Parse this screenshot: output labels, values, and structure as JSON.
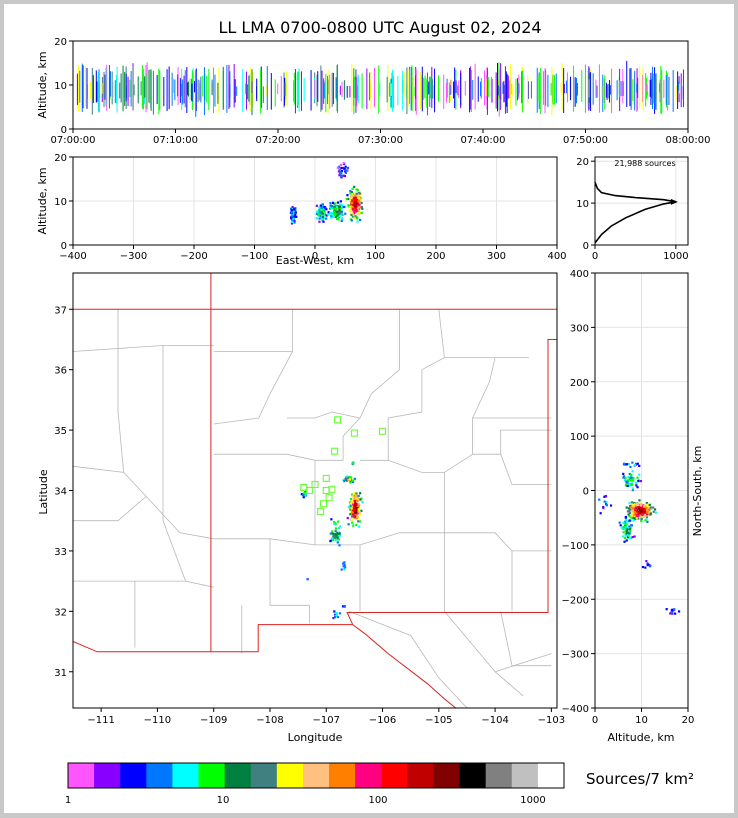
{
  "title": "LL LMA 0700-0800 UTC August 02, 2024",
  "sources_label": "21,988 sources",
  "colorbar_label": "Sources/7 km²",
  "chart_data": [
    {
      "id": "time_height",
      "type": "scatter",
      "ylabel": "Altitude, km",
      "xlim": [
        "07:00:00",
        "08:00:00"
      ],
      "ylim": [
        0,
        20
      ],
      "xticks": [
        "07:00:00",
        "07:10:00",
        "07:20:00",
        "07:30:00",
        "07:40:00",
        "07:50:00",
        "08:00:00"
      ],
      "yticks": [
        0,
        10,
        20
      ]
    },
    {
      "id": "ew_altitude",
      "type": "heatmap",
      "xlabel": "East-West, km",
      "ylabel": "Altitude, km",
      "xlim": [
        -400,
        400
      ],
      "ylim": [
        0,
        20
      ],
      "xticks": [
        -400,
        -300,
        -200,
        -100,
        0,
        100,
        200,
        300,
        400
      ],
      "yticks": [
        0,
        10,
        20
      ]
    },
    {
      "id": "altitude_histogram",
      "type": "line",
      "xlim": [
        0,
        1150
      ],
      "ylim": [
        0,
        21
      ],
      "xticks": [
        0,
        1000
      ],
      "yticks": [
        0,
        10,
        20
      ],
      "profile": [
        [
          0,
          0.5
        ],
        [
          80,
          2.5
        ],
        [
          200,
          4.5
        ],
        [
          380,
          6.5
        ],
        [
          620,
          8.5
        ],
        [
          850,
          9.8
        ],
        [
          1000,
          10.3
        ],
        [
          850,
          10.8
        ],
        [
          500,
          11.3
        ],
        [
          250,
          11.8
        ],
        [
          80,
          12.5
        ],
        [
          30,
          13.5
        ],
        [
          0,
          15
        ]
      ]
    },
    {
      "id": "plan_view",
      "type": "heatmap",
      "xlabel": "Longitude",
      "ylabel": "Latitude",
      "xlim": [
        -111.5,
        -102.9
      ],
      "ylim": [
        30.4,
        37.6
      ],
      "xticks": [
        -111,
        -110,
        -109,
        -108,
        -107,
        -106,
        -105,
        -104,
        -103
      ],
      "yticks": [
        31,
        32,
        33,
        34,
        35,
        36,
        37
      ],
      "stations": [
        [
          -106.8,
          35.17
        ],
        [
          -106.5,
          34.95
        ],
        [
          -106.0,
          34.98
        ],
        [
          -106.85,
          34.65
        ],
        [
          -107.0,
          34.2
        ],
        [
          -107.2,
          34.1
        ],
        [
          -107.3,
          34.0
        ],
        [
          -107.4,
          34.05
        ],
        [
          -107.0,
          34.0
        ],
        [
          -106.95,
          33.88
        ],
        [
          -107.05,
          33.78
        ],
        [
          -107.1,
          33.65
        ],
        [
          -106.9,
          34.02
        ]
      ]
    },
    {
      "id": "altitude_ns",
      "type": "heatmap",
      "xlabel": "Altitude, km",
      "ylabel": "North-South, km",
      "xlim": [
        0,
        20
      ],
      "ylim": [
        -400,
        400
      ],
      "xticks": [
        0,
        10,
        20
      ],
      "yticks": [
        -400,
        -300,
        -200,
        -100,
        0,
        100,
        200,
        300,
        400
      ]
    },
    {
      "id": "colorbar",
      "type": "bar",
      "xticks": [
        "1",
        "10",
        "100",
        "1000"
      ],
      "colors": [
        "#ff55ff",
        "#8800ff",
        "#0000ff",
        "#0077ff",
        "#00ffff",
        "#00ff00",
        "#008040",
        "#408080",
        "#ffff00",
        "#ffc080",
        "#ff8000",
        "#ff0080",
        "#ff0000",
        "#c00000",
        "#800000",
        "#000000",
        "#808080",
        "#c0c0c0",
        "#ffffff"
      ]
    }
  ]
}
